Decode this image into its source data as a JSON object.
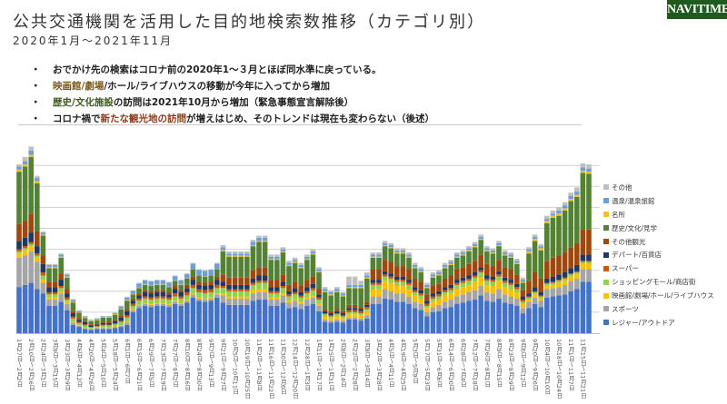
{
  "brand": {
    "logo": "NAVITIME",
    "color": "#1f5a1f"
  },
  "header": {
    "title": "公共交通機関を活用した目的地検索数推移（カテゴリ別）",
    "subtitle": "2020年1月～2021年11月"
  },
  "bullets": [
    {
      "segments": [
        {
          "text": "おでかけ先の検索はコロナ前の2020年1～３月とほぼ同水準に戻っている。",
          "color": "#222222"
        }
      ]
    },
    {
      "segments": [
        {
          "text": "映画館/劇場",
          "color": "#7a5a1e"
        },
        {
          "text": "/ホール/ライブハウスの移動が今年に入ってから増加",
          "color": "#222222"
        }
      ]
    },
    {
      "segments": [
        {
          "text": "歴史/文化施設",
          "color": "#3d5a1e"
        },
        {
          "text": "の訪問は2021年10月から増加（緊急事態宣言解除後）",
          "color": "#222222"
        }
      ]
    },
    {
      "segments": [
        {
          "text": "コロナ禍で",
          "color": "#222222"
        },
        {
          "text": "新たな観光地の訪問",
          "color": "#8a3a1a"
        },
        {
          "text": "が増えはじめ、そのトレンドは現在も変わらない（後述）",
          "color": "#222222"
        }
      ]
    }
  ],
  "bullet_symbol": "・",
  "chart_data": {
    "type": "bar",
    "stacked": true,
    "title": "",
    "xlabel": "",
    "ylabel": "",
    "ylim": [
      0,
      90
    ],
    "grid": true,
    "legend_position": "right",
    "x_tick_labels": [
      "1月27日～2月2日",
      "2月10日～2月16日",
      "2月24日～3月1日",
      "3月9日～3月15日",
      "3月23日～3月29日",
      "4月6日～4月12日",
      "4月20日～4月26日",
      "5月4日～5月10日",
      "5月18日～5月24日",
      "6月1日～6月7日",
      "6月15日～6月21日",
      "6月29日～7月5日",
      "7月13日～7月19日",
      "7月27日～8月2日",
      "8月10日～8月16日",
      "8月24日～8月30日",
      "9月7日～9月13日",
      "9月21日～9月27日",
      "10月5日～10月11日",
      "10月19日～10月25日",
      "11月2日～11月8日",
      "11月16日～11月22日",
      "11月30日～12月6日",
      "12月14日～12月20日",
      "12月28日～1月3日",
      "1月11日～1月17日",
      "1月25日～1月31日",
      "2月8日～2月14日",
      "2月22日～2月28日",
      "3月8日～3月14日",
      "3月22日～3月28日",
      "4月5日～4月11日",
      "4月19日～4月25日",
      "5月3日～5月9日",
      "5月17日～5月23日",
      "5月31日～6月6日",
      "6月14日～6月20日",
      "6月28日～7月4日",
      "7月12日～7月18日",
      "7月26日～8月1日",
      "8月9日～8月15日",
      "8月23日～8月29日",
      "9月6日～9月12日",
      "9月20日～9月26日",
      "10月4日～10月10日",
      "10月18日～10月24日",
      "11月1日～11月7日",
      "11月15日～11月21日"
    ],
    "series": [
      {
        "name": "レジャー/アウトドア",
        "color": "#4472c4",
        "values": [
          22,
          23,
          24,
          21,
          19,
          13,
          13,
          15,
          11,
          4,
          3,
          2,
          1.5,
          2,
          2,
          2,
          2.5,
          3,
          4,
          10,
          12,
          13,
          12.5,
          13,
          13,
          12.5,
          14,
          13,
          14.5,
          17,
          15.5,
          15,
          15.5,
          17,
          14.5,
          13.5,
          13.5,
          13.5,
          13.5,
          15.5,
          16,
          16,
          13,
          13,
          14.5,
          12,
          12.5,
          11.5,
          13,
          14,
          10.5,
          5.5,
          5,
          5.5,
          5,
          6.5,
          6.5,
          6,
          7,
          14,
          14,
          16.5,
          16,
          15,
          15,
          14,
          12,
          11,
          8,
          10,
          10.5,
          12,
          12.5,
          14,
          14.5,
          15.5,
          16,
          18,
          15.5,
          15,
          16.5,
          14.5,
          14,
          13,
          9.5,
          12,
          14,
          12.5,
          17,
          17.5,
          18,
          18.5,
          20,
          21,
          24.5,
          24.5
        ]
      },
      {
        "name": "スポーツ",
        "color": "#a5a5a5",
        "values": [
          14,
          14,
          15,
          13,
          5,
          3,
          3,
          4,
          3,
          1,
          0.5,
          0.5,
          0.5,
          0.5,
          0.5,
          0.5,
          0.5,
          0.5,
          1,
          1,
          1,
          1,
          1,
          1,
          1,
          1,
          1,
          1,
          1,
          1.5,
          1,
          1,
          1,
          1.5,
          3.5,
          3,
          3,
          3,
          3,
          3.5,
          3.5,
          3.5,
          3,
          3,
          3.5,
          2.5,
          3,
          2.5,
          3,
          3,
          2.5,
          1,
          1,
          1,
          1,
          1,
          1,
          1,
          1.5,
          3.5,
          3.5,
          4.5,
          4,
          4,
          4,
          3.5,
          3,
          3,
          2,
          2.5,
          3,
          3,
          3.5,
          3.5,
          4,
          4,
          4.5,
          4.5,
          4,
          4,
          4.5,
          4,
          3.5,
          3.5,
          2.5,
          3,
          3,
          3,
          4,
          4,
          4,
          4.5,
          5,
          5,
          6,
          6
        ]
      },
      {
        "name": "映画館/劇場/ホール/ライブハウス",
        "color": "#ffc000",
        "values": [
          2,
          2.5,
          2.5,
          2,
          1.5,
          1,
          1,
          1,
          1,
          0.5,
          0.3,
          0.2,
          0.2,
          0.2,
          0.2,
          0.2,
          0.3,
          0.4,
          0.5,
          0.5,
          0.5,
          0.5,
          0.5,
          0.5,
          0.5,
          0.5,
          0.5,
          0.5,
          0.5,
          0.5,
          0.5,
          0.5,
          0.5,
          0.5,
          1,
          1,
          1,
          1,
          1,
          1.5,
          1.5,
          1.5,
          1,
          1,
          1,
          1,
          1,
          1,
          1,
          1,
          1,
          1.5,
          1,
          1.5,
          1,
          1.5,
          1.5,
          1.5,
          2,
          3.5,
          3.5,
          4,
          4,
          3.5,
          3.5,
          3.5,
          3,
          2.5,
          2,
          2.5,
          2.5,
          3,
          3,
          3.5,
          3.5,
          3.5,
          4,
          4,
          3.5,
          3.5,
          4,
          3.5,
          3.5,
          3,
          2,
          1,
          1.5,
          1,
          1.5,
          1.5,
          2,
          2,
          2,
          2,
          2.5,
          2.5
        ]
      },
      {
        "name": "ショッピングモール/商店街",
        "color": "#92d050",
        "values": [
          1,
          1,
          1,
          1,
          2,
          1.5,
          1.5,
          1.5,
          1,
          1.5,
          1,
          1,
          0.5,
          0.5,
          1,
          1,
          1,
          1.5,
          2,
          1.5,
          2,
          2,
          2,
          2,
          2,
          2,
          2,
          2,
          2,
          2.5,
          2.5,
          2.5,
          2.5,
          2.5,
          2.5,
          2.5,
          2.5,
          2.5,
          2.5,
          2.5,
          3,
          3,
          2,
          2,
          2.5,
          2,
          2,
          2,
          2,
          2.5,
          2,
          1,
          1,
          1,
          1,
          1,
          1,
          1,
          1,
          2,
          2,
          2,
          2,
          2,
          2,
          2,
          1.5,
          1.5,
          1,
          1.5,
          1.5,
          1.5,
          1.5,
          2,
          2,
          2,
          2,
          2.5,
          2,
          2,
          2,
          2,
          2,
          1.5,
          1,
          1,
          1,
          1,
          1,
          1,
          1,
          1,
          1,
          1,
          1,
          1
        ]
      },
      {
        "name": "スーパー",
        "color": "#c55a11",
        "values": [
          1,
          1,
          1,
          1,
          1.5,
          1,
          1,
          1,
          1,
          1,
          0.5,
          0.5,
          0.3,
          0.3,
          0.4,
          0.4,
          0.5,
          0.5,
          1,
          1,
          1,
          1,
          1,
          1,
          1,
          1,
          1.5,
          1,
          1.5,
          1.5,
          1.5,
          1.5,
          1.5,
          1.5,
          1,
          1,
          1,
          1,
          1,
          1,
          1,
          1,
          1,
          1,
          1,
          1,
          1,
          1,
          1,
          1,
          1,
          0.5,
          0.5,
          0.5,
          0.5,
          1,
          1,
          1,
          1,
          1,
          1,
          1,
          1,
          1,
          1,
          1,
          1,
          1,
          1,
          1,
          1,
          1,
          1,
          1,
          1,
          1,
          1,
          1,
          1,
          1,
          1,
          1,
          1,
          1,
          1,
          0.5,
          0.5,
          0.5,
          0.5,
          0.5,
          0.5,
          0.5,
          0.5,
          0.5,
          0.5,
          0.5
        ]
      },
      {
        "name": "デパート/百貨店",
        "color": "#1f3864",
        "values": [
          4,
          4,
          4.5,
          3.5,
          4,
          2.5,
          2.5,
          3,
          2,
          1.5,
          1,
          1,
          0.7,
          0.7,
          0.8,
          0.8,
          1,
          1.5,
          2,
          1.5,
          1.5,
          2,
          2,
          2,
          2,
          1.5,
          2,
          2,
          2,
          2.5,
          2,
          2,
          2,
          2.5,
          2,
          2,
          2,
          2,
          2,
          2,
          2.5,
          2.5,
          2,
          2,
          2,
          1.5,
          2,
          1.5,
          2,
          2,
          1.5,
          1,
          1,
          1,
          1,
          1,
          1,
          1,
          1,
          1.5,
          1.5,
          1.5,
          1.5,
          1.5,
          1.5,
          1.5,
          1.5,
          1.5,
          1.5,
          1.5,
          1.5,
          1.5,
          1.5,
          1.5,
          1.5,
          1.5,
          1.5,
          1.5,
          1.5,
          1.5,
          1.5,
          1.5,
          1.5,
          1.5,
          1.5,
          1.5,
          2,
          1.5,
          2,
          2.5,
          2.5,
          2.5,
          2.5,
          3,
          3,
          3
        ]
      },
      {
        "name": "その他観光",
        "color": "#9e480e",
        "values": [
          8,
          8,
          9,
          7,
          4,
          2.5,
          2.5,
          3,
          2,
          1,
          1,
          0.5,
          0.5,
          0.5,
          0.5,
          0.5,
          0.5,
          1,
          1,
          1,
          1,
          1,
          1,
          1,
          1,
          1,
          1.5,
          1,
          1.5,
          1.5,
          1.5,
          1.5,
          1.5,
          1.5,
          3.5,
          3.5,
          3.5,
          3.5,
          3.5,
          4,
          4,
          4,
          3.5,
          3.5,
          3.5,
          3,
          3,
          3,
          3.5,
          3.5,
          2.5,
          1,
          1,
          1,
          1,
          1.5,
          1.5,
          1,
          1.5,
          5,
          5,
          5.5,
          5.5,
          5,
          5,
          5,
          4,
          4,
          3,
          3.5,
          3.5,
          4,
          4.5,
          5,
          5,
          5.5,
          5.5,
          6,
          5.5,
          5,
          5.5,
          5,
          5,
          4.5,
          3,
          6,
          7,
          6.5,
          8.5,
          9,
          9,
          9.5,
          10,
          10.5,
          12,
          12
        ]
      },
      {
        "name": "歴史/文化/見学",
        "color": "#548235",
        "values": [
          25,
          26,
          27,
          23,
          9.5,
          6.5,
          6.5,
          7.5,
          5.5,
          4,
          2.5,
          1.5,
          1.5,
          1.5,
          2,
          2,
          2.5,
          3,
          4,
          2,
          2.5,
          2.5,
          2.5,
          2.5,
          2.5,
          2.5,
          2.5,
          2.5,
          3,
          3.5,
          3,
          3,
          3,
          3.5,
          11,
          10,
          10,
          10,
          10,
          11.5,
          12,
          12,
          9.5,
          9.5,
          10.5,
          9,
          9,
          8.5,
          9.5,
          10.5,
          8,
          8,
          7.5,
          8,
          7,
          8,
          8,
          9,
          11,
          5.5,
          5.5,
          6.5,
          6.5,
          6,
          6,
          5.5,
          5,
          4.5,
          3,
          4,
          4,
          5,
          5,
          5.5,
          5.5,
          6,
          6.5,
          7,
          6,
          6,
          6.5,
          5.5,
          5.5,
          5,
          3.5,
          13,
          15,
          13.5,
          18,
          19,
          19,
          20,
          22,
          22,
          27,
          26.5
        ]
      },
      {
        "name": "名所",
        "color": "#f2c12e",
        "values": [
          1,
          1,
          1,
          1,
          0.5,
          0.5,
          0.5,
          0.5,
          0.5,
          0.3,
          0.3,
          0.3,
          0.3,
          0.3,
          0.3,
          0.3,
          0.3,
          0.3,
          0.4,
          0.2,
          0.2,
          0.2,
          0.2,
          0.2,
          0.2,
          0.2,
          0.2,
          0.2,
          0.2,
          0.2,
          0.2,
          0.2,
          0.2,
          0.2,
          0.5,
          0.5,
          0.5,
          0.5,
          0.5,
          0.5,
          0.5,
          0.5,
          0.5,
          0.5,
          0.5,
          0.5,
          0.5,
          0.5,
          0.5,
          0.5,
          0.5,
          0.5,
          0.5,
          0.5,
          0.5,
          0.5,
          0.5,
          0.5,
          0.5,
          0.5,
          0.5,
          0.5,
          0.5,
          0.5,
          0.5,
          0.5,
          0.5,
          0.5,
          0.5,
          0.5,
          0.5,
          0.5,
          0.5,
          0.5,
          0.5,
          0.5,
          0.5,
          0.5,
          0.5,
          0.5,
          0.5,
          0.5,
          0.5,
          0.5,
          0.5,
          1,
          1,
          1,
          1,
          1,
          1,
          1,
          1,
          1,
          1,
          1
        ]
      },
      {
        "name": "温泉/温泉旅館",
        "color": "#6f9fd8",
        "values": [
          1.5,
          1.5,
          2,
          1.5,
          1,
          1,
          1,
          1,
          1,
          1,
          0.5,
          0.5,
          0.3,
          0.5,
          0.3,
          0.3,
          0.5,
          1,
          1,
          1.5,
          2,
          2,
          2,
          2,
          2,
          2,
          2,
          2,
          2,
          2.5,
          2.5,
          2.5,
          2.5,
          2.5,
          1.5,
          1,
          1,
          1,
          1,
          1.5,
          1.5,
          1.5,
          1,
          1,
          1,
          1,
          1,
          1,
          1,
          1,
          1,
          1,
          1,
          1,
          1,
          1,
          1,
          1,
          1,
          1,
          1,
          1,
          1,
          1,
          1,
          1,
          1,
          1,
          1,
          1,
          1,
          1,
          1,
          1,
          1,
          1,
          1,
          1,
          1,
          1,
          1,
          1,
          1,
          1,
          1,
          1,
          1,
          1,
          1,
          1,
          1.5,
          1.5,
          1.5,
          1.5,
          1.5,
          1.5
        ]
      },
      {
        "name": "その他",
        "color": "#bfbfbf",
        "values": [
          1,
          2,
          2,
          1,
          0.5,
          0.5,
          0.5,
          0.5,
          0.5,
          0.5,
          0.3,
          0.2,
          0.2,
          0.2,
          0.2,
          0.2,
          0.3,
          0.5,
          0.5,
          0.3,
          0.3,
          0.3,
          0.3,
          0.3,
          0.3,
          0.3,
          0.3,
          0.3,
          0.3,
          0.3,
          0.3,
          0.3,
          0.3,
          0.3,
          1,
          1,
          1,
          1,
          1,
          1,
          1,
          1,
          1,
          1,
          1,
          1,
          1,
          1,
          1,
          1,
          1,
          1,
          1,
          1,
          0.5,
          4,
          4,
          2,
          1.5,
          1,
          1,
          1,
          1,
          1,
          1,
          1,
          1,
          1,
          1,
          1,
          1,
          1,
          1,
          1,
          1,
          1,
          1,
          1,
          1,
          1,
          1,
          1,
          1,
          1,
          1,
          1,
          1,
          1,
          1.5,
          1.5,
          1.5,
          1.5,
          1.5,
          2,
          2,
          2
        ]
      }
    ]
  }
}
